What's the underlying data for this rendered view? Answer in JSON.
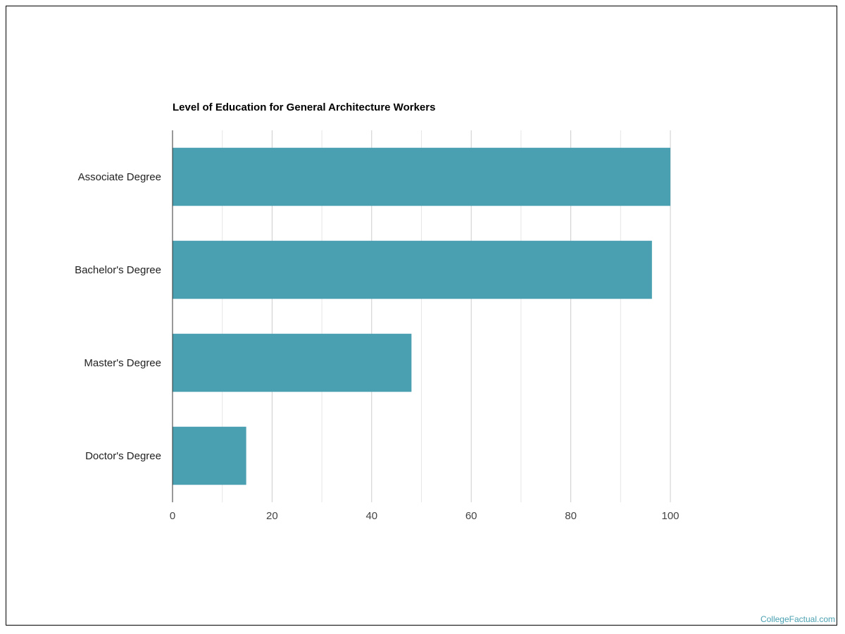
{
  "chart_data": {
    "type": "bar",
    "orientation": "horizontal",
    "title": "Level of Education for General Architecture Workers",
    "categories": [
      "Associate Degree",
      "Bachelor's Degree",
      "Master's Degree",
      "Doctor's Degree"
    ],
    "values": [
      100,
      96.3,
      48,
      14.8
    ],
    "xlabel": "",
    "ylabel": "",
    "xlim": [
      0,
      100
    ],
    "xticks": [
      "0",
      "20",
      "40",
      "60",
      "80",
      "100"
    ],
    "grid": true,
    "legend": "none",
    "bar_color": "#4aa0b1"
  },
  "watermark": "CollegeFactual.com"
}
